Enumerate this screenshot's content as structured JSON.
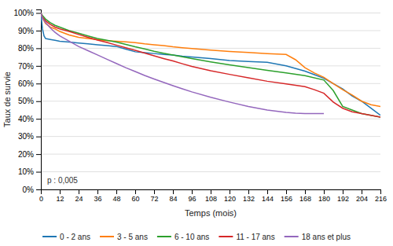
{
  "chart_data": {
    "type": "line",
    "xlabel": "Temps (mois)",
    "ylabel": "Taux de survie",
    "annotation": "p : 0,005",
    "xlim": [
      0,
      216
    ],
    "ylim": [
      0.0,
      1.02
    ],
    "xticks": [
      0,
      12,
      24,
      36,
      48,
      60,
      72,
      84,
      96,
      108,
      120,
      132,
      144,
      156,
      168,
      180,
      192,
      204,
      216
    ],
    "yticks": [
      {
        "value": 0.0,
        "label": "0%"
      },
      {
        "value": 0.1,
        "label": "10%"
      },
      {
        "value": 0.2,
        "label": "20%"
      },
      {
        "value": 0.3,
        "label": "30%"
      },
      {
        "value": 0.4,
        "label": "40%"
      },
      {
        "value": 0.5,
        "label": "50%"
      },
      {
        "value": 0.6,
        "label": "60%"
      },
      {
        "value": 0.7,
        "label": "70%"
      },
      {
        "value": 0.8,
        "label": "80%"
      },
      {
        "value": 0.9,
        "label": "90%"
      },
      {
        "value": 1.0,
        "label": "100%"
      }
    ],
    "grid": true,
    "legend": "bottom",
    "series": [
      {
        "name": "0 - 2 ans",
        "x": [
          0,
          1,
          2,
          3,
          6,
          9,
          12,
          18,
          24,
          30,
          36,
          42,
          48,
          54,
          60,
          66,
          72,
          78,
          84,
          90,
          96,
          108,
          120,
          132,
          144,
          156,
          168,
          174,
          180,
          186,
          192,
          198,
          204,
          210,
          216
        ],
        "values": [
          1.0,
          0.91,
          0.87,
          0.855,
          0.85,
          0.845,
          0.84,
          0.835,
          0.83,
          0.825,
          0.82,
          0.815,
          0.81,
          0.795,
          0.78,
          0.775,
          0.77,
          0.765,
          0.762,
          0.755,
          0.75,
          0.742,
          0.73,
          0.725,
          0.72,
          0.7,
          0.67,
          0.65,
          0.63,
          0.6,
          0.57,
          0.53,
          0.5,
          0.46,
          0.42
        ]
      },
      {
        "name": "3 - 5 ans",
        "x": [
          0,
          1,
          3,
          6,
          9,
          12,
          18,
          24,
          30,
          36,
          42,
          48,
          54,
          60,
          66,
          72,
          78,
          84,
          90,
          96,
          108,
          120,
          132,
          144,
          156,
          162,
          168,
          174,
          180,
          186,
          192,
          198,
          204,
          210,
          216
        ],
        "values": [
          1.0,
          0.97,
          0.94,
          0.92,
          0.91,
          0.895,
          0.875,
          0.862,
          0.855,
          0.848,
          0.843,
          0.84,
          0.836,
          0.832,
          0.825,
          0.82,
          0.815,
          0.808,
          0.803,
          0.798,
          0.79,
          0.782,
          0.776,
          0.77,
          0.765,
          0.735,
          0.69,
          0.66,
          0.635,
          0.6,
          0.565,
          0.535,
          0.5,
          0.48,
          0.47
        ]
      },
      {
        "name": "6 - 10 ans",
        "x": [
          0,
          1,
          3,
          6,
          9,
          12,
          18,
          24,
          30,
          36,
          42,
          48,
          54,
          60,
          66,
          72,
          78,
          84,
          90,
          96,
          108,
          120,
          132,
          144,
          156,
          168,
          180,
          186,
          192,
          198,
          204,
          210,
          216
        ],
        "values": [
          1.0,
          0.985,
          0.965,
          0.945,
          0.93,
          0.92,
          0.9,
          0.885,
          0.87,
          0.855,
          0.845,
          0.835,
          0.822,
          0.808,
          0.796,
          0.783,
          0.772,
          0.762,
          0.752,
          0.742,
          0.723,
          0.706,
          0.69,
          0.675,
          0.66,
          0.645,
          0.62,
          0.56,
          0.47,
          0.45,
          0.43,
          0.42,
          0.41
        ]
      },
      {
        "name": "11 - 17 ans",
        "x": [
          0,
          1,
          3,
          6,
          9,
          12,
          18,
          24,
          30,
          36,
          42,
          48,
          54,
          60,
          66,
          72,
          78,
          84,
          90,
          96,
          108,
          120,
          132,
          144,
          156,
          168,
          174,
          180,
          186,
          192,
          198,
          204,
          210,
          216
        ],
        "values": [
          1.0,
          0.975,
          0.955,
          0.935,
          0.92,
          0.91,
          0.895,
          0.878,
          0.862,
          0.846,
          0.833,
          0.818,
          0.803,
          0.788,
          0.773,
          0.757,
          0.742,
          0.728,
          0.712,
          0.697,
          0.673,
          0.652,
          0.632,
          0.613,
          0.598,
          0.582,
          0.565,
          0.545,
          0.495,
          0.46,
          0.44,
          0.43,
          0.42,
          0.41
        ]
      },
      {
        "name": "18 ans et plus",
        "x": [
          0,
          1,
          3,
          6,
          9,
          12,
          18,
          24,
          30,
          36,
          42,
          48,
          54,
          60,
          66,
          72,
          78,
          84,
          90,
          96,
          108,
          120,
          132,
          144,
          156,
          162,
          168,
          180
        ],
        "values": [
          1.0,
          0.97,
          0.945,
          0.915,
          0.89,
          0.87,
          0.84,
          0.81,
          0.786,
          0.762,
          0.738,
          0.714,
          0.69,
          0.668,
          0.646,
          0.626,
          0.607,
          0.588,
          0.57,
          0.553,
          0.522,
          0.495,
          0.47,
          0.45,
          0.436,
          0.432,
          0.43,
          0.43
        ]
      }
    ]
  }
}
